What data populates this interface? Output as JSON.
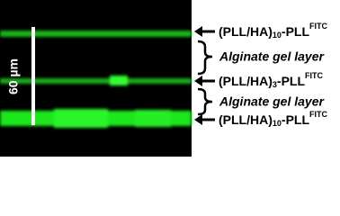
{
  "image": {
    "scale_bar_label": "60 µm",
    "labels": [
      {
        "text": "(PLL/HA)",
        "sub": "10",
        "mid": "-PLL",
        "sup": "FITC"
      },
      {
        "text": "Alginate gel layer"
      },
      {
        "text": "(PLL/HA)",
        "sub": "3",
        "mid": "-PLL",
        "sup": "FITC"
      },
      {
        "text": "Alginate gel layer"
      },
      {
        "text": "(PLL/HA)",
        "sub": "10",
        "mid": "-PLL",
        "sup": "FITC"
      }
    ]
  }
}
